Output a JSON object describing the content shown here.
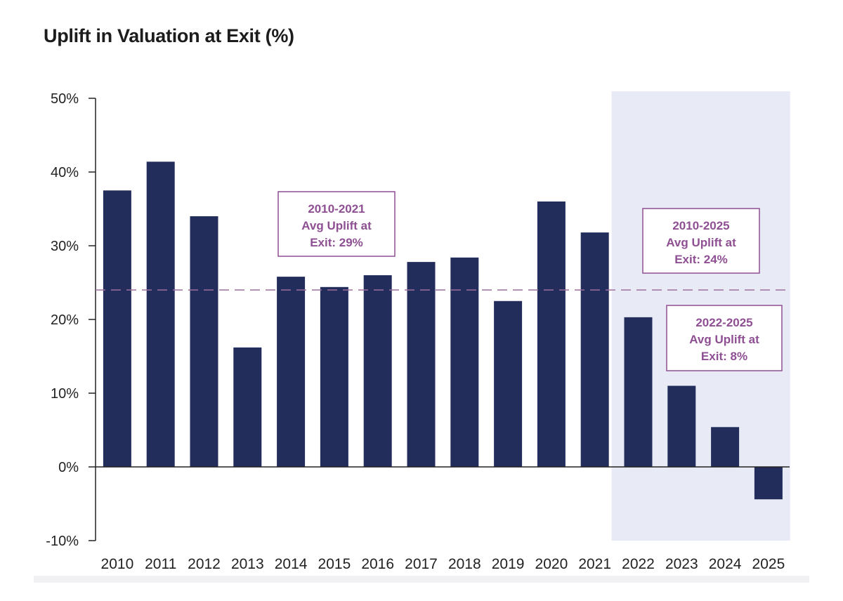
{
  "chart_data": {
    "type": "bar",
    "title": "Uplift in Valuation at Exit (%)",
    "xlabel": "",
    "ylabel": "",
    "categories": [
      "2010",
      "2011",
      "2012",
      "2013",
      "2014",
      "2015",
      "2016",
      "2017",
      "2018",
      "2019",
      "2020",
      "2021",
      "2022",
      "2023",
      "2024",
      "2025"
    ],
    "values": [
      37.5,
      41.4,
      34.0,
      16.2,
      25.8,
      24.4,
      26.0,
      27.8,
      28.4,
      22.5,
      36.0,
      31.8,
      20.3,
      11.0,
      5.4,
      -4.4
    ],
    "unit": "%",
    "ylim": [
      -10,
      50
    ],
    "yticks": [
      50,
      40,
      30,
      20,
      10,
      0,
      -10
    ],
    "ytick_labels": [
      "50%",
      "40%",
      "30%",
      "20%",
      "10%",
      "0%",
      "-10%"
    ],
    "bar_color": "#232d5c",
    "reference_line": {
      "value": 24,
      "style": "dashed",
      "color": "#9b6f9c"
    },
    "highlight_region": {
      "from": "2022",
      "to": "2025",
      "color": "#e8ebf6"
    },
    "annotations": [
      {
        "id": "avg-2010-2021",
        "lines": [
          "2010-2021",
          "Avg Uplift at",
          "Exit: 29%"
        ],
        "color": "#8e4f93"
      },
      {
        "id": "avg-2010-2025",
        "lines": [
          "2010-2025",
          "Avg Uplift at",
          "Exit: 24%"
        ],
        "color": "#8e4f93"
      },
      {
        "id": "avg-2022-2025",
        "lines": [
          "2022-2025",
          "Avg Uplift at",
          "Exit: 8%"
        ],
        "color": "#8e4f93"
      }
    ],
    "grid": false
  }
}
